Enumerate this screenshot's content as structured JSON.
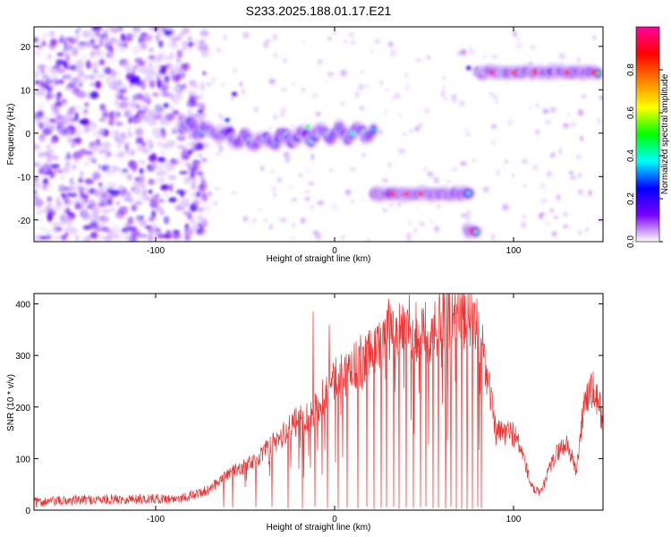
{
  "title": "S233.2025.188.01.17.E21",
  "chart_data": [
    {
      "type": "heatmap",
      "xlabel": "Height of straight line (km)",
      "ylabel": "Frequency (Hz)",
      "xlim": [
        -168,
        150
      ],
      "ylim": [
        -25,
        24.5
      ],
      "x_ticks": [
        -100,
        0,
        100
      ],
      "y_ticks": [
        -20,
        -10,
        0,
        10,
        20
      ],
      "colorbar": {
        "label": "Normalized spectral amplitude",
        "range": [
          0.0,
          1.0
        ],
        "ticks": [
          "0.0",
          "0.2",
          "0.4",
          "0.6",
          "0.8"
        ],
        "colormap": [
          "#ffffff",
          "#7a00ff",
          "#0000ff",
          "#00ffff",
          "#00ff00",
          "#ffff00",
          "#ff8000",
          "#ff0000",
          "#ff00a0"
        ]
      },
      "ridges": [
        {
          "x_range": [
            -85,
            22
          ],
          "frequency_hz": [
            2,
            0,
            -2,
            -1,
            0,
            0
          ],
          "x": [
            -85,
            -65,
            -45,
            -25,
            0,
            22
          ],
          "peak_amplitude": 0.45
        },
        {
          "x_range": [
            22,
            75
          ],
          "frequency_hz": -14,
          "peak_amplitude": 0.95
        },
        {
          "x_range": [
            74,
            80
          ],
          "frequency_hz": -22.5,
          "peak_amplitude": 0.9
        },
        {
          "x_range": [
            80,
            148
          ],
          "frequency_hz": 14,
          "peak_amplitude": 0.95
        }
      ],
      "noise_region_x": [
        -168,
        -80
      ]
    },
    {
      "type": "line",
      "xlabel": "Height of straight line (km)",
      "ylabel": "SNR (10 * v/v)",
      "xlim": [
        -168,
        150
      ],
      "ylim": [
        0,
        420
      ],
      "x_ticks": [
        -100,
        0,
        100
      ],
      "y_ticks": [
        0,
        100,
        200,
        300,
        400
      ],
      "color": "#ee3333",
      "series": [
        {
          "x": [
            -168,
            -140,
            -110,
            -90,
            -80,
            -70,
            -60,
            -50,
            -40,
            -30,
            -20,
            -10,
            0,
            10,
            20,
            30,
            40,
            50,
            60,
            70,
            78,
            83,
            90,
            100,
            105,
            110,
            115,
            120,
            125,
            130,
            135,
            140,
            145,
            150
          ],
          "values": [
            15,
            20,
            22,
            22,
            28,
            40,
            70,
            85,
            110,
            140,
            175,
            200,
            250,
            280,
            300,
            350,
            360,
            340,
            370,
            385,
            370,
            320,
            150,
            150,
            110,
            45,
            30,
            80,
            115,
            130,
            75,
            220,
            230,
            180
          ]
        }
      ],
      "dropouts_x": [
        -62,
        -57,
        -44,
        -35,
        -26,
        -18,
        -11,
        -4,
        2,
        7,
        13,
        18,
        22,
        26,
        29,
        33,
        36,
        40,
        44,
        48,
        51,
        55,
        58,
        62,
        65,
        68,
        71,
        74,
        77,
        80,
        82
      ],
      "spikes": [
        [
          -12,
          385
        ],
        [
          -3,
          360
        ],
        [
          56,
          405
        ],
        [
          73,
          415
        ]
      ]
    }
  ]
}
